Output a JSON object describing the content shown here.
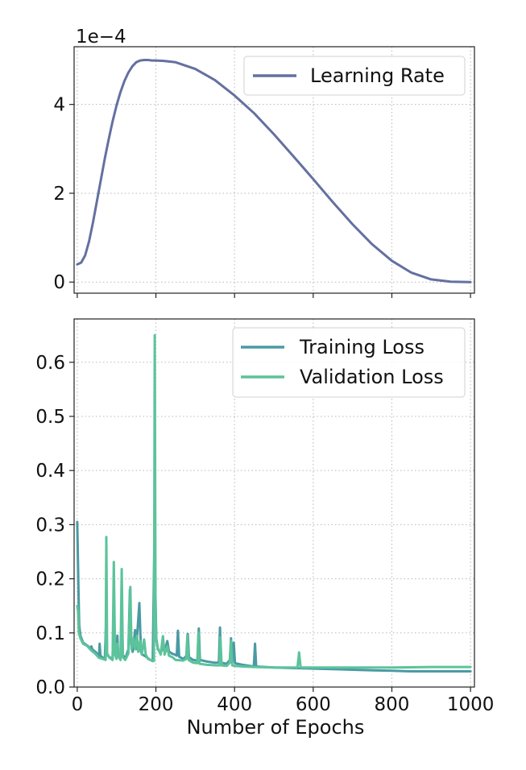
{
  "chart_data": [
    {
      "type": "line",
      "panel": "top",
      "offset_label": "1e−4",
      "xlim": [
        -8,
        1010
      ],
      "ylim": [
        -0.25,
        5.3
      ],
      "x_ticks": [
        0,
        200,
        400,
        600,
        800,
        1000
      ],
      "y_ticks": [
        {
          "value": 0,
          "label": "0"
        },
        {
          "value": 2,
          "label": "2"
        },
        {
          "value": 4,
          "label": "4"
        }
      ],
      "grid": true,
      "legend_position": "top-right",
      "series": [
        {
          "name": "Learning Rate",
          "color": "#6470a0",
          "points": [
            [
              0,
              0.4
            ],
            [
              10,
              0.44
            ],
            [
              20,
              0.6
            ],
            [
              30,
              0.92
            ],
            [
              40,
              1.34
            ],
            [
              50,
              1.82
            ],
            [
              60,
              2.3
            ],
            [
              70,
              2.78
            ],
            [
              80,
              3.22
            ],
            [
              90,
              3.62
            ],
            [
              100,
              3.98
            ],
            [
              110,
              4.28
            ],
            [
              120,
              4.53
            ],
            [
              130,
              4.72
            ],
            [
              140,
              4.86
            ],
            [
              150,
              4.95
            ],
            [
              160,
              4.99
            ],
            [
              170,
              5.0
            ],
            [
              180,
              5.0
            ],
            [
              190,
              4.99
            ],
            [
              200,
              4.99
            ],
            [
              220,
              4.98
            ],
            [
              250,
              4.95
            ],
            [
              300,
              4.8
            ],
            [
              350,
              4.55
            ],
            [
              400,
              4.2
            ],
            [
              450,
              3.8
            ],
            [
              500,
              3.33
            ],
            [
              550,
              2.83
            ],
            [
              600,
              2.32
            ],
            [
              650,
              1.8
            ],
            [
              700,
              1.3
            ],
            [
              750,
              0.85
            ],
            [
              800,
              0.48
            ],
            [
              850,
              0.21
            ],
            [
              900,
              0.06
            ],
            [
              950,
              0.01
            ],
            [
              1000,
              0.0
            ]
          ]
        }
      ]
    },
    {
      "type": "line",
      "panel": "bottom",
      "xlabel": "Number of Epochs",
      "xlim": [
        -8,
        1010
      ],
      "ylim": [
        0,
        0.68
      ],
      "x_ticks": [
        {
          "value": 0,
          "label": "0"
        },
        {
          "value": 200,
          "label": "200"
        },
        {
          "value": 400,
          "label": "400"
        },
        {
          "value": 600,
          "label": "600"
        },
        {
          "value": 800,
          "label": "800"
        },
        {
          "value": 1000,
          "label": "1000"
        }
      ],
      "y_ticks": [
        {
          "value": 0.0,
          "label": "0.0"
        },
        {
          "value": 0.1,
          "label": "0.1"
        },
        {
          "value": 0.2,
          "label": "0.2"
        },
        {
          "value": 0.3,
          "label": "0.3"
        },
        {
          "value": 0.4,
          "label": "0.4"
        },
        {
          "value": 0.5,
          "label": "0.5"
        },
        {
          "value": 0.6,
          "label": "0.6"
        }
      ],
      "grid": true,
      "legend_position": "top-right",
      "series": [
        {
          "name": "Training Loss",
          "color": "#4a9aa4",
          "points": [
            [
              0,
              0.305
            ],
            [
              3,
              0.18
            ],
            [
              5,
              0.115
            ],
            [
              8,
              0.095
            ],
            [
              15,
              0.082
            ],
            [
              25,
              0.077
            ],
            [
              33,
              0.072
            ],
            [
              36,
              0.075
            ],
            [
              38,
              0.07
            ],
            [
              48,
              0.064
            ],
            [
              55,
              0.056
            ],
            [
              57,
              0.08
            ],
            [
              59,
              0.058
            ],
            [
              65,
              0.054
            ],
            [
              70,
              0.052
            ],
            [
              73,
              0.11
            ],
            [
              75,
              0.06
            ],
            [
              82,
              0.055
            ],
            [
              90,
              0.052
            ],
            [
              93,
              0.16
            ],
            [
              96,
              0.065
            ],
            [
              100,
              0.055
            ],
            [
              102,
              0.095
            ],
            [
              104,
              0.06
            ],
            [
              110,
              0.054
            ],
            [
              113,
              0.14
            ],
            [
              116,
              0.06
            ],
            [
              122,
              0.052
            ],
            [
              130,
              0.07
            ],
            [
              134,
              0.18
            ],
            [
              137,
              0.08
            ],
            [
              141,
              0.065
            ],
            [
              147,
              0.105
            ],
            [
              150,
              0.07
            ],
            [
              158,
              0.155
            ],
            [
              162,
              0.065
            ],
            [
              166,
              0.06
            ],
            [
              175,
              0.056
            ],
            [
              186,
              0.05
            ],
            [
              192,
              0.048
            ],
            [
              196,
              0.26
            ],
            [
              198,
              0.2
            ],
            [
              201,
              0.09
            ],
            [
              205,
              0.07
            ],
            [
              212,
              0.063
            ],
            [
              218,
              0.075
            ],
            [
              222,
              0.065
            ],
            [
              229,
              0.085
            ],
            [
              233,
              0.066
            ],
            [
              240,
              0.062
            ],
            [
              248,
              0.06
            ],
            [
              253,
              0.058
            ],
            [
              256,
              0.104
            ],
            [
              259,
              0.056
            ],
            [
              270,
              0.052
            ],
            [
              278,
              0.058
            ],
            [
              281,
              0.098
            ],
            [
              284,
              0.055
            ],
            [
              295,
              0.05
            ],
            [
              306,
              0.049
            ],
            [
              309,
              0.108
            ],
            [
              312,
              0.05
            ],
            [
              330,
              0.047
            ],
            [
              350,
              0.045
            ],
            [
              360,
              0.045
            ],
            [
              363,
              0.11
            ],
            [
              366,
              0.045
            ],
            [
              380,
              0.043
            ],
            [
              388,
              0.05
            ],
            [
              391,
              0.09
            ],
            [
              394,
              0.045
            ],
            [
              398,
              0.082
            ],
            [
              401,
              0.044
            ],
            [
              420,
              0.041
            ],
            [
              440,
              0.039
            ],
            [
              449,
              0.038
            ],
            [
              452,
              0.08
            ],
            [
              455,
              0.038
            ],
            [
              500,
              0.036
            ],
            [
              550,
              0.035
            ],
            [
              600,
              0.034
            ],
            [
              650,
              0.033
            ],
            [
              700,
              0.032
            ],
            [
              750,
              0.031
            ],
            [
              800,
              0.03
            ],
            [
              850,
              0.029
            ],
            [
              900,
              0.029
            ],
            [
              950,
              0.029
            ],
            [
              1000,
              0.029
            ]
          ]
        },
        {
          "name": "Validation Loss",
          "color": "#5cc39a",
          "points": [
            [
              0,
              0.15
            ],
            [
              2,
              0.14
            ],
            [
              4,
              0.1
            ],
            [
              8,
              0.09
            ],
            [
              15,
              0.08
            ],
            [
              25,
              0.076
            ],
            [
              35,
              0.068
            ],
            [
              45,
              0.062
            ],
            [
              55,
              0.054
            ],
            [
              65,
              0.052
            ],
            [
              72,
              0.05
            ],
            [
              74,
              0.277
            ],
            [
              76,
              0.062
            ],
            [
              82,
              0.054
            ],
            [
              90,
              0.05
            ],
            [
              93,
              0.231
            ],
            [
              96,
              0.06
            ],
            [
              100,
              0.052
            ],
            [
              102,
              0.08
            ],
            [
              104,
              0.058
            ],
            [
              110,
              0.05
            ],
            [
              113,
              0.218
            ],
            [
              116,
              0.055
            ],
            [
              122,
              0.05
            ],
            [
              130,
              0.062
            ],
            [
              135,
              0.185
            ],
            [
              138,
              0.07
            ],
            [
              143,
              0.09
            ],
            [
              147,
              0.07
            ],
            [
              152,
              0.095
            ],
            [
              155,
              0.065
            ],
            [
              160,
              0.085
            ],
            [
              164,
              0.06
            ],
            [
              170,
              0.088
            ],
            [
              174,
              0.06
            ],
            [
              180,
              0.052
            ],
            [
              186,
              0.05
            ],
            [
              191,
              0.049
            ],
            [
              195,
              0.048
            ],
            [
              197,
              0.65
            ],
            [
              199,
              0.14
            ],
            [
              201,
              0.085
            ],
            [
              205,
              0.072
            ],
            [
              212,
              0.06
            ],
            [
              218,
              0.094
            ],
            [
              222,
              0.06
            ],
            [
              229,
              0.075
            ],
            [
              233,
              0.058
            ],
            [
              242,
              0.055
            ],
            [
              250,
              0.05
            ],
            [
              270,
              0.049
            ],
            [
              277,
              0.052
            ],
            [
              280,
              0.095
            ],
            [
              283,
              0.05
            ],
            [
              295,
              0.045
            ],
            [
              305,
              0.044
            ],
            [
              308,
              0.1
            ],
            [
              311,
              0.043
            ],
            [
              330,
              0.041
            ],
            [
              355,
              0.04
            ],
            [
              362,
              0.04
            ],
            [
              364,
              0.092
            ],
            [
              367,
              0.04
            ],
            [
              380,
              0.039
            ],
            [
              388,
              0.045
            ],
            [
              391,
              0.085
            ],
            [
              394,
              0.04
            ],
            [
              400,
              0.039
            ],
            [
              420,
              0.038
            ],
            [
              450,
              0.037
            ],
            [
              500,
              0.036
            ],
            [
              560,
              0.036
            ],
            [
              564,
              0.064
            ],
            [
              568,
              0.036
            ],
            [
              600,
              0.036
            ],
            [
              700,
              0.036
            ],
            [
              800,
              0.036
            ],
            [
              900,
              0.037
            ],
            [
              1000,
              0.037
            ]
          ]
        }
      ]
    }
  ]
}
